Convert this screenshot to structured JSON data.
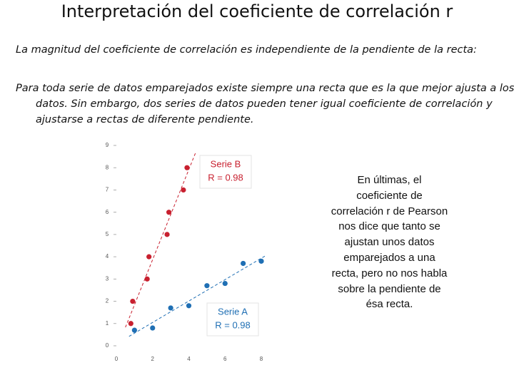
{
  "title": "Interpretación del coeficiente de correlación r",
  "paragraph_1": "La magnitud del coeficiente de correlación es independiente de la pendiente de la recta:",
  "paragraph_2": "Para toda serie de datos emparejados existe siempre una recta que es la que mejor ajusta a los datos. Sin embargo, dos series de datos pueden tener igual coeficiente de correlación y ajustarse a rectas de diferente pendiente.",
  "side_note": "En últimas, el coeficiente de correlación r de Pearson nos dice que tanto se ajustan unos datos emparejados  a una recta, pero no nos habla sobre la pendiente de ésa recta.",
  "chart_data": {
    "type": "scatter",
    "xlim": [
      0,
      8
    ],
    "xticks": [
      0,
      2,
      4,
      6,
      8
    ],
    "ylim": [
      0,
      9
    ],
    "yticks": [
      0,
      1,
      2,
      3,
      4,
      5,
      6,
      7,
      8,
      9
    ],
    "trend_lines": true,
    "series": [
      {
        "name": "Serie B",
        "annotation": "R = 0.98",
        "color": "#c8202f",
        "x": [
          0.8,
          0.9,
          1.7,
          1.8,
          2.8,
          2.9,
          3.7,
          3.9
        ],
        "values": [
          1,
          2,
          3,
          4,
          5,
          6,
          7,
          8
        ]
      },
      {
        "name": "Serie A",
        "annotation": "R = 0.98",
        "color": "#1f6fb4",
        "x": [
          1,
          2,
          3,
          4,
          5,
          6,
          7,
          8
        ],
        "values": [
          0.7,
          0.8,
          1.7,
          1.8,
          2.7,
          2.8,
          3.7,
          3.8
        ]
      }
    ]
  }
}
